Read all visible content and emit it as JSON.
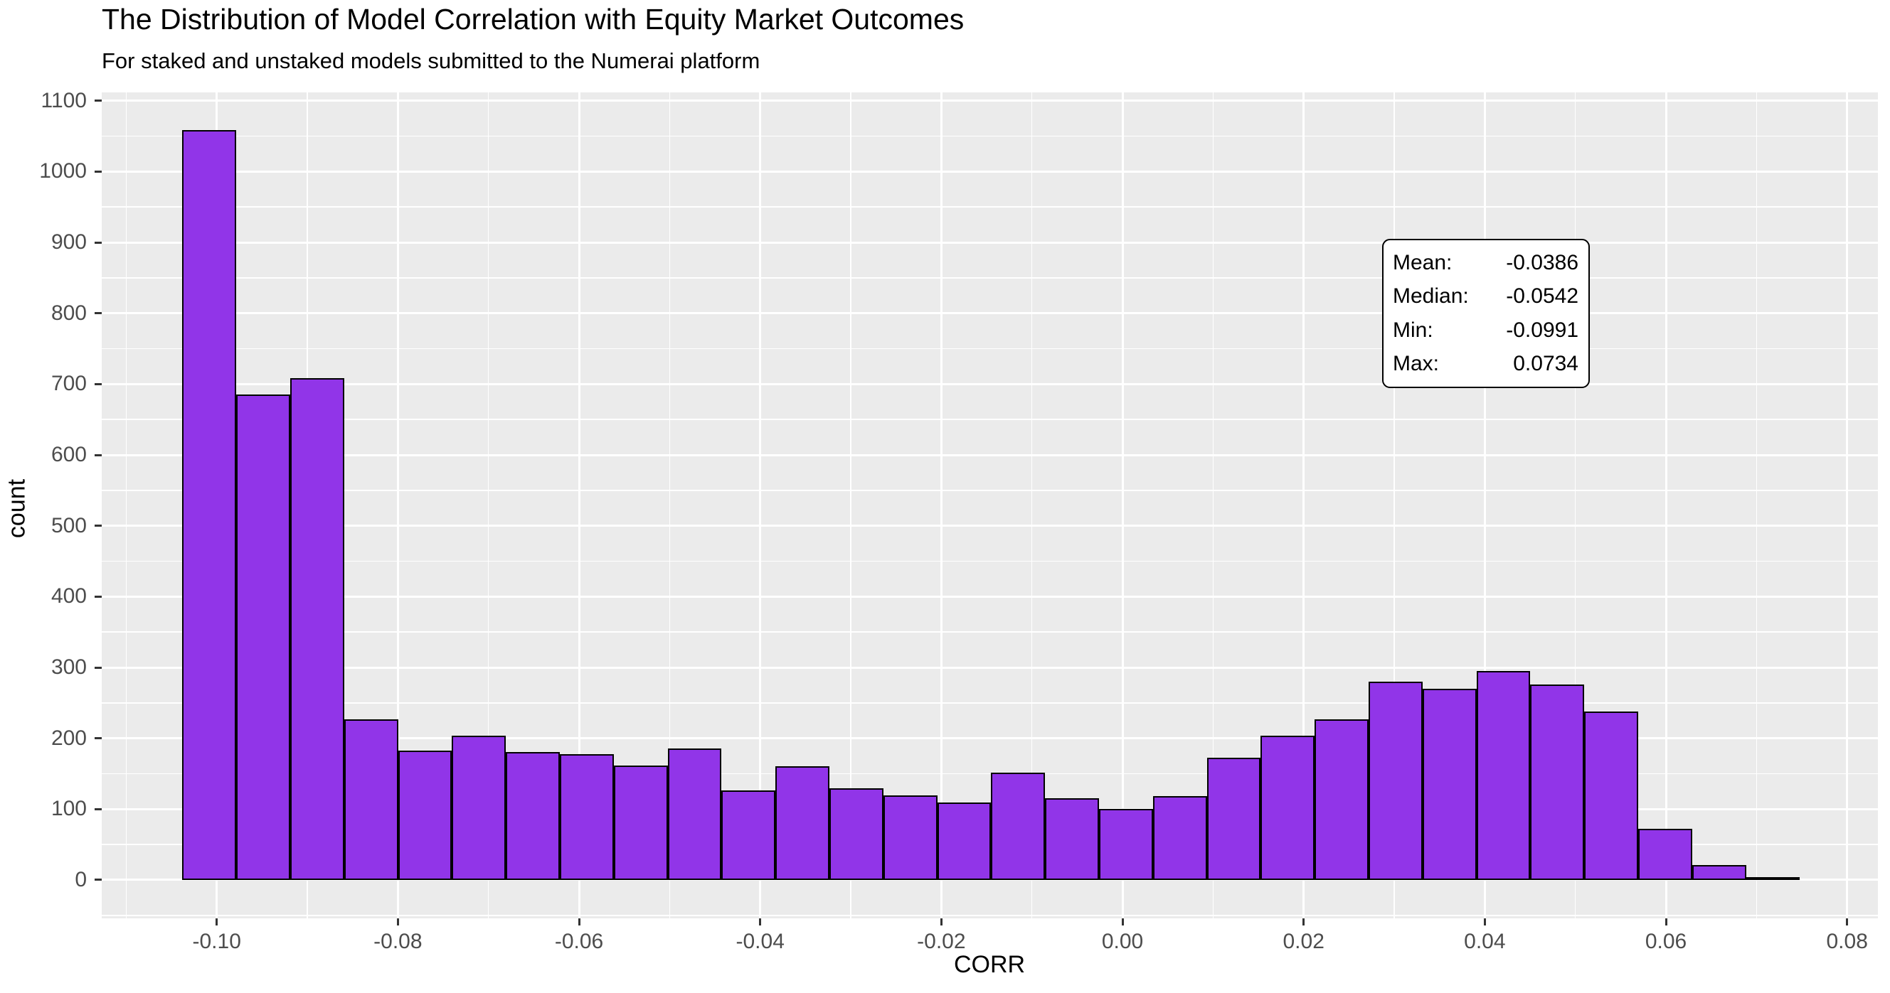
{
  "header": {
    "title": "The Distribution of Model Correlation with Equity Market Outcomes",
    "subtitle": "For staked and unstaked models submitted to the Numerai platform"
  },
  "chart_data": {
    "type": "bar",
    "subtype": "histogram",
    "title": "The Distribution of Model Correlation with Equity Market Outcomes",
    "subtitle": "For staked and unstaked models submitted to the Numerai platform",
    "xlabel": "CORR",
    "ylabel": "count",
    "bin_start": -0.1038,
    "bin_width": 0.005953,
    "counts": [
      1059,
      685,
      708,
      227,
      183,
      204,
      181,
      178,
      162,
      186,
      126,
      161,
      129,
      119,
      109,
      152,
      115,
      100,
      118,
      173,
      204,
      227,
      280,
      270,
      295,
      276,
      238,
      72,
      21,
      4
    ],
    "x_domain": [
      -0.1127,
      0.0834
    ],
    "y_domain": [
      -54.2,
      1111.8
    ],
    "x_ticks": [
      {
        "value": -0.1,
        "label": "-0.10"
      },
      {
        "value": -0.08,
        "label": "-0.08"
      },
      {
        "value": -0.06,
        "label": "-0.06"
      },
      {
        "value": -0.04,
        "label": "-0.04"
      },
      {
        "value": -0.02,
        "label": "-0.02"
      },
      {
        "value": 0.0,
        "label": "0.00"
      },
      {
        "value": 0.02,
        "label": "0.02"
      },
      {
        "value": 0.04,
        "label": "0.04"
      },
      {
        "value": 0.06,
        "label": "0.06"
      },
      {
        "value": 0.08,
        "label": "0.08"
      }
    ],
    "y_ticks": [
      {
        "value": 0,
        "label": "0"
      },
      {
        "value": 100,
        "label": "100"
      },
      {
        "value": 200,
        "label": "200"
      },
      {
        "value": 300,
        "label": "300"
      },
      {
        "value": 400,
        "label": "400"
      },
      {
        "value": 500,
        "label": "500"
      },
      {
        "value": 600,
        "label": "600"
      },
      {
        "value": 700,
        "label": "700"
      },
      {
        "value": 800,
        "label": "800"
      },
      {
        "value": 900,
        "label": "900"
      },
      {
        "value": 1000,
        "label": "1000"
      },
      {
        "value": 1100,
        "label": "1100"
      }
    ],
    "x_minor": [
      -0.11,
      -0.09,
      -0.07,
      -0.05,
      -0.03,
      -0.01,
      0.01,
      0.03,
      0.05,
      0.07
    ],
    "y_minor": [
      -50,
      50,
      150,
      250,
      350,
      450,
      550,
      650,
      750,
      850,
      950,
      1050
    ],
    "grid": true,
    "legend": "none",
    "annotation": {
      "rows": [
        {
          "label": "Mean:",
          "value": "-0.0386"
        },
        {
          "label": "Median:",
          "value": "-0.0542"
        },
        {
          "label": "Min:",
          "value": "-0.0991"
        },
        {
          "label": "Max:",
          "value": "0.0734"
        }
      ]
    },
    "colors": {
      "bar_fill": "#9135E8",
      "bar_stroke": "#000000",
      "panel_bg": "#EBEBEB",
      "grid": "#FFFFFF",
      "axis_text": "#4D4D4D",
      "tick_mark": "#333333",
      "text": "#000000"
    }
  }
}
